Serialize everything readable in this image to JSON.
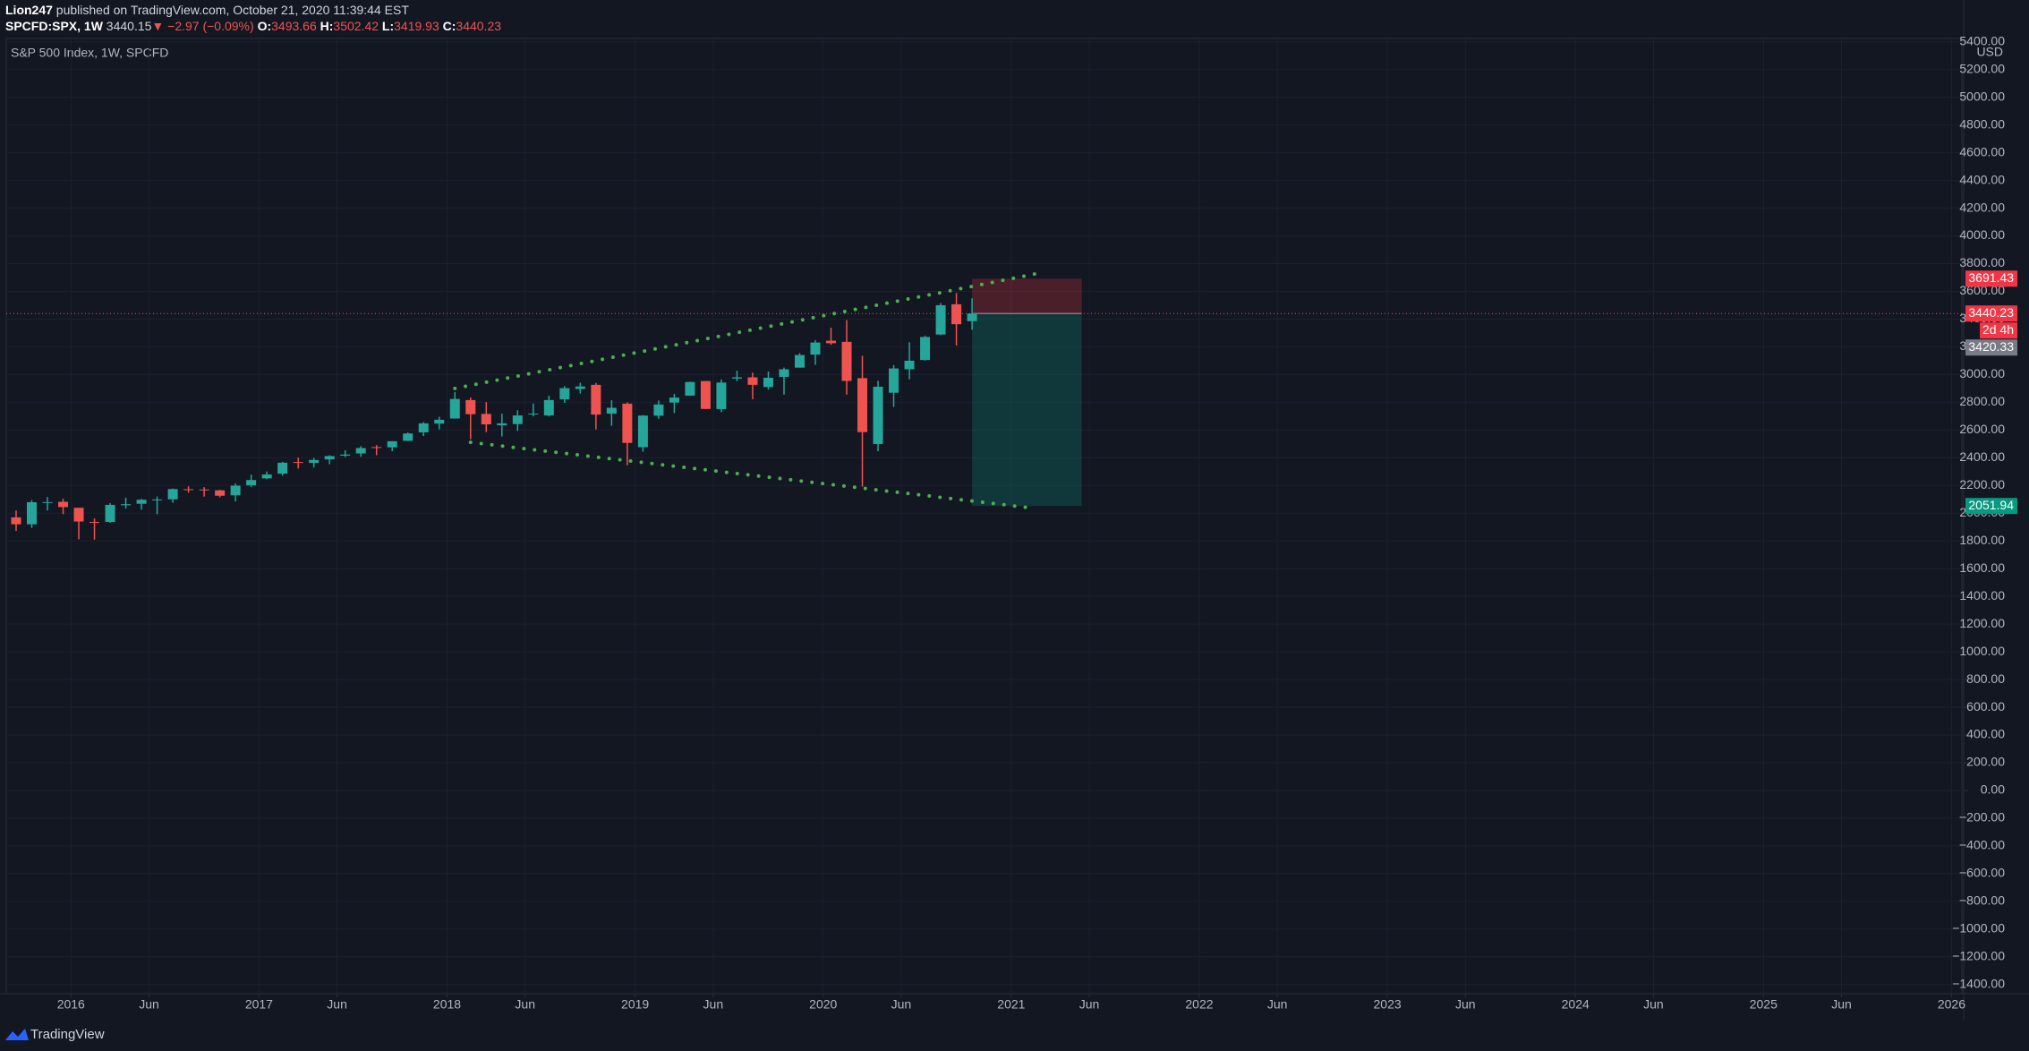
{
  "header": {
    "author": "Lion247",
    "published": "published on TradingView.com, October 21, 2020 11:39:44 EST"
  },
  "legend": {
    "symbol": "SPCFD:SPX, 1W",
    "last": "3440.15",
    "arrow": "▼",
    "change": "−2.97 (−0.09%)",
    "open_label": "O:",
    "open": "3493.66",
    "high_label": "H:",
    "high": "3502.42",
    "low_label": "L:",
    "low": "3419.93",
    "close_label": "C:",
    "close": "3440.23"
  },
  "footer": {
    "brand": "TradingView"
  },
  "chart_data": {
    "type": "candlestick",
    "title": "S&P 500 Index, 1W, SPCFD",
    "y_unit": "USD",
    "up_color": "#26a69a",
    "down_color": "#ef5350",
    "grid": true,
    "x": [
      "2015-09",
      "2015-10",
      "2015-11",
      "2015-12",
      "2016-01",
      "2016-02",
      "2016-03",
      "2016-04",
      "2016-05",
      "2016-06",
      "2016-07",
      "2016-08",
      "2016-09",
      "2016-10",
      "2016-11",
      "2016-12",
      "2017-01",
      "2017-02",
      "2017-03",
      "2017-04",
      "2017-05",
      "2017-06",
      "2017-07",
      "2017-08",
      "2017-09",
      "2017-10",
      "2017-11",
      "2017-12",
      "2018-01",
      "2018-02",
      "2018-03",
      "2018-04",
      "2018-05",
      "2018-06",
      "2018-07",
      "2018-08",
      "2018-09",
      "2018-10",
      "2018-11",
      "2018-12",
      "2019-01",
      "2019-02",
      "2019-03",
      "2019-04",
      "2019-05",
      "2019-06",
      "2019-07",
      "2019-08",
      "2019-09",
      "2019-10",
      "2019-11",
      "2019-12",
      "2020-01",
      "2020-02",
      "2020-03",
      "2020-04",
      "2020-05",
      "2020-06",
      "2020-07",
      "2020-08",
      "2020-09",
      "2020-10"
    ],
    "open": [
      1970,
      1920,
      2080,
      2082,
      2039,
      1937,
      1937,
      2057,
      2068,
      2093,
      2100,
      2173,
      2171,
      2165,
      2129,
      2201,
      2251,
      2285,
      2369,
      2363,
      2388,
      2415,
      2431,
      2477,
      2475,
      2522,
      2583,
      2646,
      2683,
      2816,
      2716,
      2634,
      2643,
      2718,
      2705,
      2821,
      2896,
      2926,
      2718,
      2790,
      2476,
      2703,
      2798,
      2848,
      2953,
      2751,
      2971,
      2980,
      2910,
      2983,
      3050,
      3144,
      3244,
      3236,
      2974,
      2499,
      2869,
      3038,
      3105,
      3289,
      3507,
      3385
    ],
    "high": [
      2020,
      2094,
      2116,
      2104,
      2039,
      1962,
      2073,
      2111,
      2103,
      2121,
      2178,
      2194,
      2188,
      2169,
      2214,
      2278,
      2301,
      2371,
      2401,
      2398,
      2418,
      2454,
      2484,
      2491,
      2519,
      2582,
      2657,
      2695,
      2873,
      2835,
      2801,
      2718,
      2742,
      2791,
      2848,
      2917,
      2941,
      2940,
      2815,
      2800,
      2708,
      2813,
      2860,
      2949,
      2954,
      2964,
      3028,
      3014,
      3022,
      3050,
      3154,
      3248,
      3338,
      3393,
      3136,
      2955,
      3068,
      3233,
      3280,
      3515,
      3588,
      3550
    ],
    "low": [
      1872,
      1893,
      2019,
      1993,
      1812,
      1810,
      1931,
      2034,
      2025,
      1992,
      2075,
      2148,
      2120,
      2114,
      2084,
      2188,
      2245,
      2271,
      2322,
      2329,
      2353,
      2405,
      2407,
      2418,
      2447,
      2520,
      2557,
      2605,
      2682,
      2533,
      2585,
      2553,
      2594,
      2699,
      2698,
      2796,
      2864,
      2604,
      2631,
      2346,
      2443,
      2681,
      2722,
      2848,
      2751,
      2729,
      2952,
      2822,
      2892,
      2855,
      3050,
      3070,
      3214,
      2855,
      2192,
      2447,
      2767,
      2965,
      3101,
      3285,
      3210,
      3323
    ],
    "close": [
      1920,
      2079,
      2080,
      2044,
      1940,
      1932,
      2060,
      2065,
      2097,
      2099,
      2174,
      2171,
      2168,
      2126,
      2199,
      2239,
      2279,
      2364,
      2363,
      2384,
      2412,
      2423,
      2470,
      2472,
      2519,
      2575,
      2648,
      2674,
      2824,
      2714,
      2641,
      2648,
      2705,
      2718,
      2816,
      2902,
      2914,
      2711,
      2760,
      2507,
      2704,
      2784,
      2834,
      2946,
      2752,
      2942,
      2980,
      2926,
      2977,
      3038,
      3141,
      3231,
      3226,
      2954,
      2585,
      2912,
      3044,
      3100,
      3271,
      3500,
      3363,
      3440
    ],
    "xlim": [
      2015.656,
      2026.055
    ],
    "xticks": [
      2016,
      {
        "value": 2016.415,
        "label": "Jun"
      },
      2017,
      {
        "value": 2017.415,
        "label": "Jun"
      },
      2018,
      {
        "value": 2018.415,
        "label": "Jun"
      },
      2019,
      {
        "value": 2019.415,
        "label": "Jun"
      },
      2020,
      {
        "value": 2020.415,
        "label": "Jun"
      },
      2021,
      {
        "value": 2021.415,
        "label": "Jun"
      },
      2022,
      {
        "value": 2022.415,
        "label": "Jun"
      },
      2023,
      {
        "value": 2023.415,
        "label": "Jun"
      },
      2024,
      {
        "value": 2024.415,
        "label": "Jun"
      },
      2025,
      {
        "value": 2025.415,
        "label": "Jun"
      },
      2026
    ],
    "ylim": [
      -1466,
      5424
    ],
    "yticks": [
      {
        "value": 5400,
        "label": "5400.00"
      },
      {
        "value": 5200,
        "label": "5200.00"
      },
      {
        "value": 5000,
        "label": "5000.00"
      },
      {
        "value": 4800,
        "label": "4800.00"
      },
      {
        "value": 4600,
        "label": "4600.00"
      },
      {
        "value": 4400,
        "label": "4400.00"
      },
      {
        "value": 4200,
        "label": "4200.00"
      },
      {
        "value": 4000,
        "label": "4000.00"
      },
      {
        "value": 3800,
        "label": "3800.00"
      },
      {
        "value": 3600,
        "label": "3600.00"
      },
      {
        "value": 3400,
        "label": "3400.00"
      },
      {
        "value": 3200,
        "label": "3200.00"
      },
      {
        "value": 3000,
        "label": "3000.00"
      },
      {
        "value": 2800,
        "label": "2800.00"
      },
      {
        "value": 2600,
        "label": "2600.00"
      },
      {
        "value": 2400,
        "label": "2400.00"
      },
      {
        "value": 2200,
        "label": "2200.00"
      },
      {
        "value": 2000,
        "label": "2000.00"
      },
      {
        "value": 1800,
        "label": "1800.00"
      },
      {
        "value": 1600,
        "label": "1600.00"
      },
      {
        "value": 1400,
        "label": "1400.00"
      },
      {
        "value": 1200,
        "label": "1200.00"
      },
      {
        "value": 1000,
        "label": "1000.00"
      },
      {
        "value": 800,
        "label": "800.00"
      },
      {
        "value": 600,
        "label": "600.00"
      },
      {
        "value": 400,
        "label": "400.00"
      },
      {
        "value": 200,
        "label": "200.00"
      },
      {
        "value": 0,
        "label": "0.00"
      },
      {
        "value": -200,
        "label": "−200.00"
      },
      {
        "value": -400,
        "label": "−400.00"
      },
      {
        "value": -600,
        "label": "−600.00"
      },
      {
        "value": -800,
        "label": "−800.00"
      },
      {
        "value": -1000,
        "label": "−1000.00"
      },
      {
        "value": -1200,
        "label": "−1200.00"
      },
      {
        "value": -1400,
        "label": "−1400.00"
      }
    ],
    "trendlines": [
      {
        "x": [
          "2018-01",
          "2021-02"
        ],
        "y": [
          2900,
          3725
        ],
        "color": "#4caf50"
      },
      {
        "x": [
          "2018-02",
          "2021-02"
        ],
        "y": [
          2511,
          2035
        ],
        "color": "#4caf50"
      }
    ],
    "position": {
      "start": "2020-10",
      "end": "2021-05",
      "entry": 3440.23,
      "stop": 3691.43,
      "target": 2051.94
    },
    "last_price": 3440.23,
    "price_labels": [
      {
        "value": 3691.43,
        "color": "#f23645"
      },
      {
        "value": 3440.23,
        "color": "#f23645",
        "countdown": "2d 4h"
      },
      {
        "value": 3420.33,
        "color": "#787b86"
      },
      {
        "value": 2051.94,
        "color": "#089981"
      }
    ]
  }
}
